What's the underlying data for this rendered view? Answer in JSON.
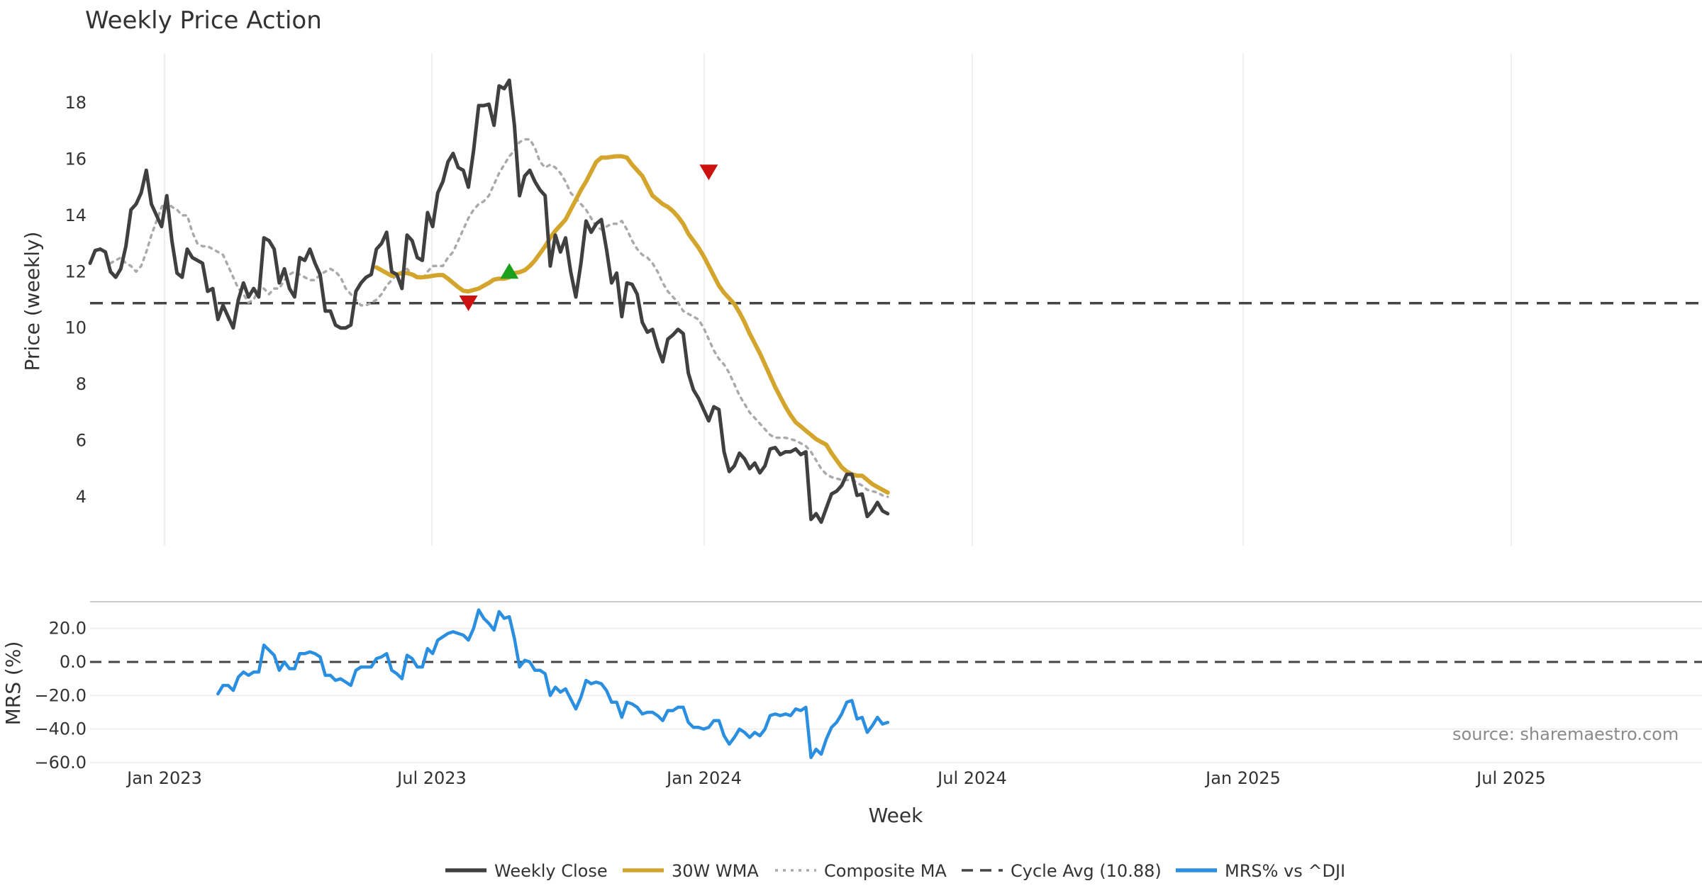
{
  "chart_data": {
    "type": "line",
    "title": "Weekly Price Action",
    "xlabel": "Week",
    "source": "source: sharemaestro.com",
    "x_ticks": [
      "Jan 2023",
      "Jul 2023",
      "Jan 2024",
      "Jul 2024",
      "Jan 2025",
      "Jul 2025"
    ],
    "price_panel": {
      "ylabel": "Price (weekly)",
      "ylim": [
        2.2,
        19.6
      ],
      "y_ticks": [
        "4",
        "6",
        "8",
        "10",
        "12",
        "14",
        "16",
        "18"
      ],
      "cycle_avg": 10.88,
      "weekly_close": [
        12.3,
        12.75,
        12.8,
        12.7,
        12.0,
        11.8,
        12.1,
        12.9,
        14.2,
        14.4,
        14.8,
        15.6,
        14.4,
        14.0,
        13.6,
        14.7,
        13.1,
        11.95,
        11.8,
        12.8,
        12.5,
        12.4,
        12.3,
        11.3,
        11.4,
        10.3,
        10.8,
        10.4,
        10.0,
        11.0,
        11.6,
        11.1,
        11.4,
        11.1,
        13.2,
        13.1,
        12.8,
        11.6,
        12.1,
        11.4,
        11.1,
        12.5,
        12.4,
        12.8,
        12.3,
        11.9,
        10.6,
        10.6,
        10.1,
        10.0,
        10.0,
        10.1,
        11.3,
        11.6,
        11.8,
        11.9,
        12.8,
        13.0,
        13.4,
        12.0,
        11.9,
        11.4,
        13.3,
        13.1,
        12.5,
        12.4,
        14.1,
        13.6,
        14.8,
        15.2,
        15.9,
        16.2,
        15.7,
        15.6,
        15.0,
        16.3,
        17.9,
        17.9,
        17.95,
        17.2,
        18.6,
        18.5,
        18.8,
        17.2,
        14.7,
        15.4,
        15.6,
        15.2,
        14.9,
        14.7,
        12.2,
        13.3,
        12.7,
        13.2,
        12.0,
        11.1,
        12.3,
        13.8,
        13.4,
        13.7,
        13.85,
        12.8,
        11.6,
        11.95,
        10.4,
        11.6,
        11.55,
        11.2,
        10.2,
        9.85,
        9.95,
        9.3,
        8.8,
        9.6,
        9.75,
        9.95,
        9.8,
        8.4,
        7.8,
        7.5,
        7.1,
        6.7,
        7.2,
        7.1,
        5.6,
        4.9,
        5.1,
        5.55,
        5.35,
        5.0,
        5.2,
        4.85,
        5.1,
        5.7,
        5.75,
        5.5,
        5.6,
        5.6,
        5.7,
        5.5,
        5.6,
        3.2,
        3.4,
        3.1,
        3.6,
        4.1,
        4.2,
        4.4,
        4.8,
        4.8,
        4.05,
        4.1,
        3.3,
        3.5,
        3.8,
        3.5,
        3.4
      ],
      "wma_30w": [
        12.15,
        12.05,
        11.95,
        11.85,
        11.9,
        11.95,
        11.95,
        11.9,
        11.8,
        11.8,
        11.82,
        11.85,
        11.88,
        11.88,
        11.75,
        11.6,
        11.45,
        11.32,
        11.3,
        11.35,
        11.4,
        11.5,
        11.6,
        11.72,
        11.75,
        11.75,
        11.8,
        11.95,
        11.98,
        12.05,
        12.2,
        12.4,
        12.65,
        12.9,
        13.2,
        13.45,
        13.65,
        13.85,
        14.2,
        14.55,
        14.9,
        15.2,
        15.55,
        15.9,
        16.05,
        16.05,
        16.08,
        16.1,
        16.1,
        16.05,
        15.8,
        15.6,
        15.4,
        15.05,
        14.7,
        14.55,
        14.4,
        14.3,
        14.15,
        13.95,
        13.7,
        13.35,
        13.1,
        12.85,
        12.55,
        12.2,
        11.85,
        11.5,
        11.25,
        11.05,
        10.85,
        10.55,
        10.2,
        9.8,
        9.45,
        9.1,
        8.7,
        8.3,
        7.9,
        7.55,
        7.2,
        6.9,
        6.65,
        6.5,
        6.35,
        6.2,
        6.05,
        5.95,
        5.85,
        5.55,
        5.3,
        5.05,
        4.9,
        4.8,
        4.75,
        4.75,
        4.6,
        4.45,
        4.35,
        4.25,
        4.15
      ],
      "composite_ma": [
        12.3,
        12.4,
        12.5,
        12.3,
        12.2,
        12.0,
        12.2,
        12.7,
        13.3,
        13.8,
        14.3,
        14.5,
        14.3,
        14.2,
        14.0,
        14.0,
        13.4,
        13.0,
        12.9,
        12.9,
        12.8,
        12.7,
        12.6,
        12.2,
        11.8,
        11.4,
        11.2,
        10.9,
        11.0,
        11.4,
        11.4,
        11.2,
        11.4,
        11.4,
        11.7,
        11.9,
        12.0,
        11.9,
        11.8,
        11.7,
        11.7,
        11.9,
        12.0,
        12.1,
        12.0,
        11.8,
        11.4,
        11.2,
        11.0,
        10.8,
        10.8,
        10.9,
        11.0,
        11.2,
        11.5,
        11.7,
        11.9,
        12.0,
        12.1,
        11.9,
        11.9,
        11.7,
        12.0,
        12.2,
        12.2,
        12.2,
        12.5,
        12.7,
        13.1,
        13.5,
        13.9,
        14.2,
        14.4,
        14.5,
        14.7,
        15.1,
        15.5,
        15.8,
        16.1,
        16.3,
        16.6,
        16.7,
        16.7,
        16.4,
        15.9,
        15.7,
        15.8,
        15.7,
        15.5,
        15.2,
        14.8,
        14.6,
        14.4,
        14.2,
        13.9,
        13.6,
        13.5,
        13.6,
        13.7,
        13.7,
        13.8,
        13.5,
        13.1,
        12.8,
        12.6,
        12.5,
        12.3,
        12.0,
        11.6,
        11.3,
        11.1,
        10.9,
        10.6,
        10.5,
        10.4,
        10.3,
        10.0,
        9.6,
        9.2,
        8.9,
        8.7,
        8.4,
        8.0,
        7.6,
        7.3,
        7.0,
        6.8,
        6.6,
        6.4,
        6.2,
        6.1,
        6.1,
        6.1,
        6.05,
        6.0,
        5.9,
        5.8,
        5.6,
        5.3,
        5.0,
        4.8,
        4.7,
        4.65,
        4.6,
        4.6,
        4.6,
        4.5,
        4.4,
        4.25,
        4.2,
        4.15,
        4.05,
        4.0
      ],
      "signals": [
        {
          "type": "sell",
          "week": 74,
          "value": 10.9
        },
        {
          "type": "buy",
          "week": 82,
          "value": 12.0
        },
        {
          "type": "sell",
          "week": 121,
          "value": 15.55
        }
      ]
    },
    "mrs_panel": {
      "ylabel": "MRS (%)",
      "ylim": [
        -60,
        35
      ],
      "y_ticks": [
        "20.0",
        "0.0",
        "−20.0",
        "−40.0",
        "−60.0"
      ],
      "mrs_vs_dji": [
        -19,
        -14,
        -14,
        -17,
        -9,
        -6,
        -8,
        -6,
        -6,
        10,
        7,
        4,
        -5,
        0,
        -4,
        -4,
        5,
        5,
        6,
        5,
        3,
        -8,
        -8,
        -11,
        -10,
        -12,
        -14,
        -5,
        -3,
        -3,
        -3,
        2,
        3,
        5,
        -5,
        -7,
        -10,
        4,
        2,
        -3,
        -3,
        8,
        5,
        13,
        15,
        17,
        18,
        17,
        16,
        13,
        20,
        31,
        26,
        23,
        19,
        30,
        26,
        27,
        14,
        -3,
        1,
        0,
        -5,
        -5,
        -7,
        -20,
        -15,
        -18,
        -16,
        -22,
        -28,
        -21,
        -11,
        -13,
        -12,
        -13,
        -17,
        -24,
        -24,
        -33,
        -24,
        -25,
        -27,
        -31,
        -30,
        -30,
        -32,
        -35,
        -29,
        -29,
        -27,
        -27,
        -36,
        -39,
        -39,
        -40,
        -39,
        -35,
        -35,
        -44,
        -49,
        -45,
        -40,
        -42,
        -45,
        -42,
        -44,
        -40,
        -32,
        -31,
        -32,
        -31,
        -32,
        -28,
        -29,
        -27,
        -57,
        -52,
        -55,
        -46,
        -39,
        -36,
        -31,
        -24,
        -23,
        -34,
        -33,
        -42,
        -38,
        -33,
        -37,
        -36
      ],
      "source_label_visible": true
    },
    "legend": [
      {
        "label": "Weekly Close",
        "color": "#404040",
        "style": "solid"
      },
      {
        "label": "30W WMA",
        "color": "#d4a52c",
        "style": "solid"
      },
      {
        "label": "Composite MA",
        "color": "#aaaaaa",
        "style": "dotted"
      },
      {
        "label": "Cycle Avg (10.88)",
        "color": "#444444",
        "style": "dashed"
      },
      {
        "label": "MRS% vs ^DJI",
        "color": "#2a8fe0",
        "style": "solid"
      }
    ],
    "colors": {
      "close": "#404040",
      "wma": "#d4a52c",
      "composite": "#aaaaaa",
      "cycle": "#444444",
      "mrs": "#2a8fe0",
      "buy": "#1aa01a",
      "sell": "#cc1111"
    }
  }
}
